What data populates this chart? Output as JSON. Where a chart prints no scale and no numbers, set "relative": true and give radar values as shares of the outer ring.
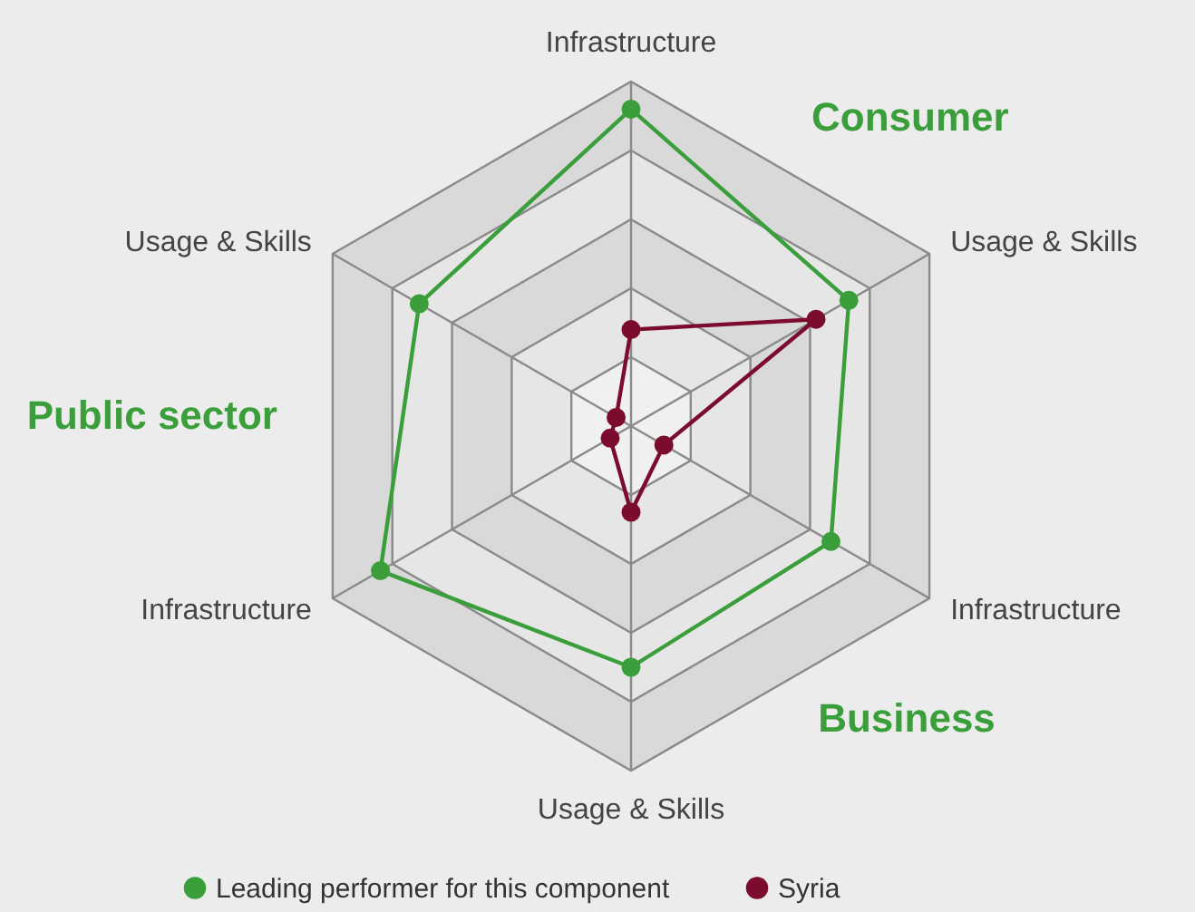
{
  "chart_data": {
    "type": "radar",
    "relative": true,
    "grid": true,
    "legend": "bottom",
    "marker": "circle",
    "categories": [
      "Infrastructure",
      "Usage & Skills",
      "Infrastructure",
      "Usage & Skills",
      "Infrastructure",
      "Usage & Skills"
    ],
    "series": [
      {
        "name": "Leading performer for this component",
        "color": "#3a9e3a",
        "values": [
          0.92,
          0.73,
          0.67,
          0.7,
          0.84,
          0.71
        ]
      },
      {
        "name": "Syria",
        "color": "#7b0c2e",
        "values": [
          0.28,
          0.62,
          0.11,
          0.25,
          0.07,
          0.05
        ]
      }
    ],
    "annotations": [
      "Consumer",
      "Public sector",
      "Business"
    ]
  }
}
